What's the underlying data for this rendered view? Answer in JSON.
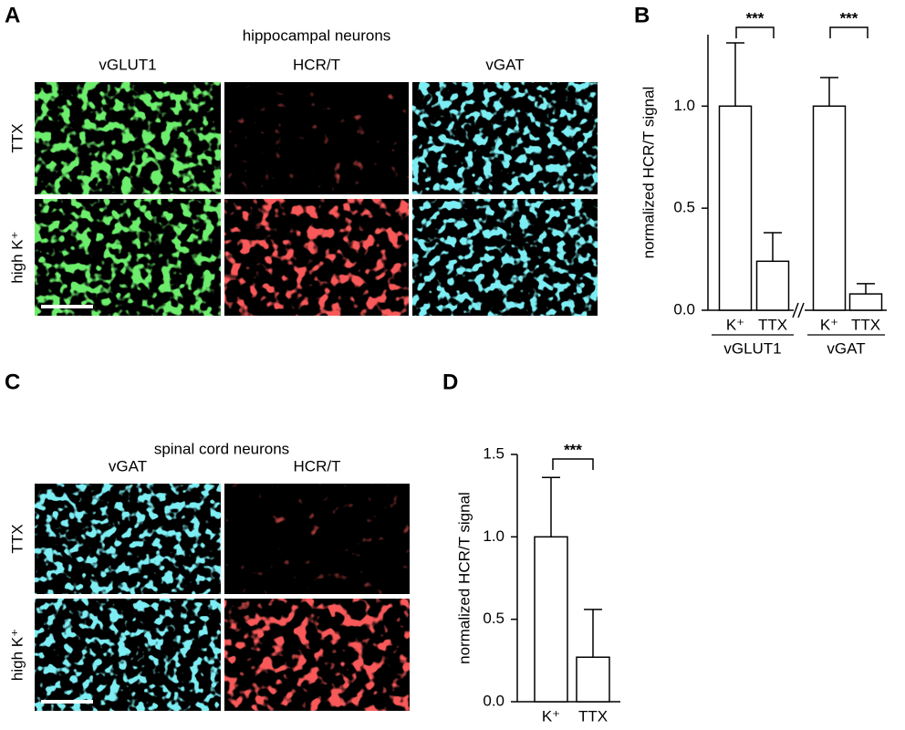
{
  "panels": {
    "A": {
      "letter": "A",
      "title": "hippocampal neurons",
      "columns": [
        "vGLUT1",
        "HCR/T",
        "vGAT"
      ],
      "rows": [
        "TTX",
        "high K⁺"
      ]
    },
    "C": {
      "letter": "C",
      "title": "spinal cord neurons",
      "columns": [
        "vGAT",
        "HCR/T"
      ],
      "rows": [
        "TTX",
        "high K⁺"
      ]
    }
  },
  "chart_data": [
    {
      "type": "bar",
      "letter": "B",
      "ylabel": "normalized HCR/T signal",
      "categories": [
        "K⁺",
        "TTX",
        "K⁺",
        "TTX"
      ],
      "groups": [
        "vGLUT1",
        "vGAT"
      ],
      "values": [
        1.0,
        0.24,
        1.0,
        0.08
      ],
      "errors": [
        0.31,
        0.14,
        0.14,
        0.05
      ],
      "annotations": [
        "***",
        "***"
      ],
      "color": "#ffffff",
      "ylim": [
        0,
        1.35
      ],
      "yticks": [
        {
          "value": 0,
          "label": "0.0"
        },
        {
          "value": 0.5,
          "label": "0.5"
        },
        {
          "value": 1,
          "label": "1.0"
        }
      ]
    },
    {
      "type": "bar",
      "letter": "D",
      "ylabel": "normalized HCR/T signal",
      "categories": [
        "K⁺",
        "TTX"
      ],
      "values": [
        1.0,
        0.27
      ],
      "errors": [
        0.36,
        0.29
      ],
      "annotations": [
        "***"
      ],
      "color": "#ffffff",
      "ylim": [
        0,
        1.5
      ],
      "yticks": [
        {
          "value": 0,
          "label": "0.0"
        },
        {
          "value": 0.5,
          "label": "0.5"
        },
        {
          "value": 1,
          "label": "1.0"
        },
        {
          "value": 1.5,
          "label": "1.5"
        }
      ]
    }
  ]
}
